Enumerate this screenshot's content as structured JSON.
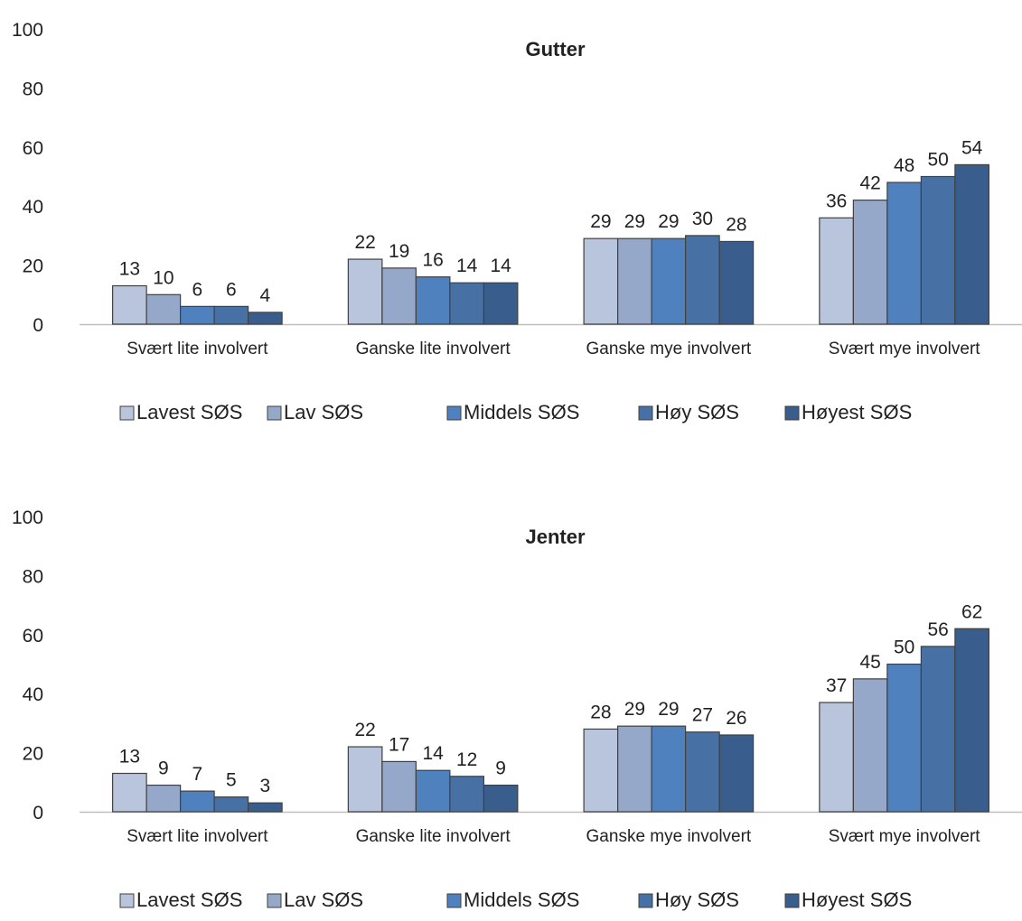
{
  "chart_data": [
    {
      "type": "bar",
      "title": "Gutter",
      "categories": [
        "Svært lite involvert",
        "Ganske lite involvert",
        "Ganske mye involvert",
        "Svært mye involvert"
      ],
      "ylim": [
        0,
        100
      ],
      "yticks": [
        0,
        20,
        40,
        60,
        80,
        100
      ],
      "grid": false,
      "legend_position": "bottom",
      "series": [
        {
          "name": "Lavest SØS",
          "color": "#b9c5dc",
          "values": [
            13,
            22,
            29,
            36
          ]
        },
        {
          "name": "Lav SØS",
          "color": "#95a8c9",
          "values": [
            10,
            19,
            29,
            42
          ]
        },
        {
          "name": "Middels SØS",
          "color": "#4e81bd",
          "values": [
            6,
            16,
            29,
            48
          ]
        },
        {
          "name": "Høy SØS",
          "color": "#4771a5",
          "values": [
            6,
            14,
            30,
            50
          ]
        },
        {
          "name": "Høyest SØS",
          "color": "#395d8d",
          "values": [
            4,
            14,
            28,
            54
          ]
        }
      ]
    },
    {
      "type": "bar",
      "title": "Jenter",
      "categories": [
        "Svært lite involvert",
        "Ganske lite involvert",
        "Ganske mye involvert",
        "Svært mye involvert"
      ],
      "ylim": [
        0,
        100
      ],
      "yticks": [
        0,
        20,
        40,
        60,
        80,
        100
      ],
      "grid": false,
      "legend_position": "bottom",
      "series": [
        {
          "name": "Lavest SØS",
          "color": "#b9c5dc",
          "values": [
            13,
            22,
            28,
            37
          ]
        },
        {
          "name": "Lav SØS",
          "color": "#95a8c9",
          "values": [
            9,
            17,
            29,
            45
          ]
        },
        {
          "name": "Middels SØS",
          "color": "#4e81bd",
          "values": [
            7,
            14,
            29,
            50
          ]
        },
        {
          "name": "Høy SØS",
          "color": "#4771a5",
          "values": [
            5,
            12,
            27,
            56
          ]
        },
        {
          "name": "Høyest SØS",
          "color": "#395d8d",
          "values": [
            3,
            9,
            26,
            62
          ]
        }
      ]
    }
  ]
}
